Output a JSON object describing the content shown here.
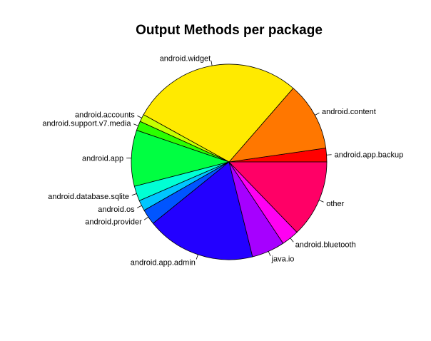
{
  "chart_data": {
    "type": "pie",
    "title": "Output Methods per package",
    "start_angle_deg": 0,
    "direction": "counterclockwise",
    "slices": [
      {
        "label": "android.app.backup",
        "value": 2.2,
        "color": "#FF0000"
      },
      {
        "label": "android.content",
        "value": 11.0,
        "color": "#FF7700"
      },
      {
        "label": "android.widget",
        "value": 27.5,
        "color": "#FFEA00"
      },
      {
        "label": "android.accounts",
        "value": 1.2,
        "color": "#C5FF00"
      },
      {
        "label": "android.support.v7.media",
        "value": 1.5,
        "color": "#2BFF00"
      },
      {
        "label": "android.app",
        "value": 9.0,
        "color": "#00FF41"
      },
      {
        "label": "android.database.sqlite",
        "value": 2.4,
        "color": "#00FFD4"
      },
      {
        "label": "android.os",
        "value": 1.7,
        "color": "#00C6FF"
      },
      {
        "label": "android.provider",
        "value": 2.5,
        "color": "#0055FF"
      },
      {
        "label": "android.app.admin",
        "value": 17.5,
        "color": "#2300FF"
      },
      {
        "label": "java.io",
        "value": 5.3,
        "color": "#A600FF"
      },
      {
        "label": "android.bluetooth",
        "value": 2.8,
        "color": "#FF00F2"
      },
      {
        "label": "other",
        "value": 12.4,
        "color": "#FF0066"
      }
    ]
  }
}
